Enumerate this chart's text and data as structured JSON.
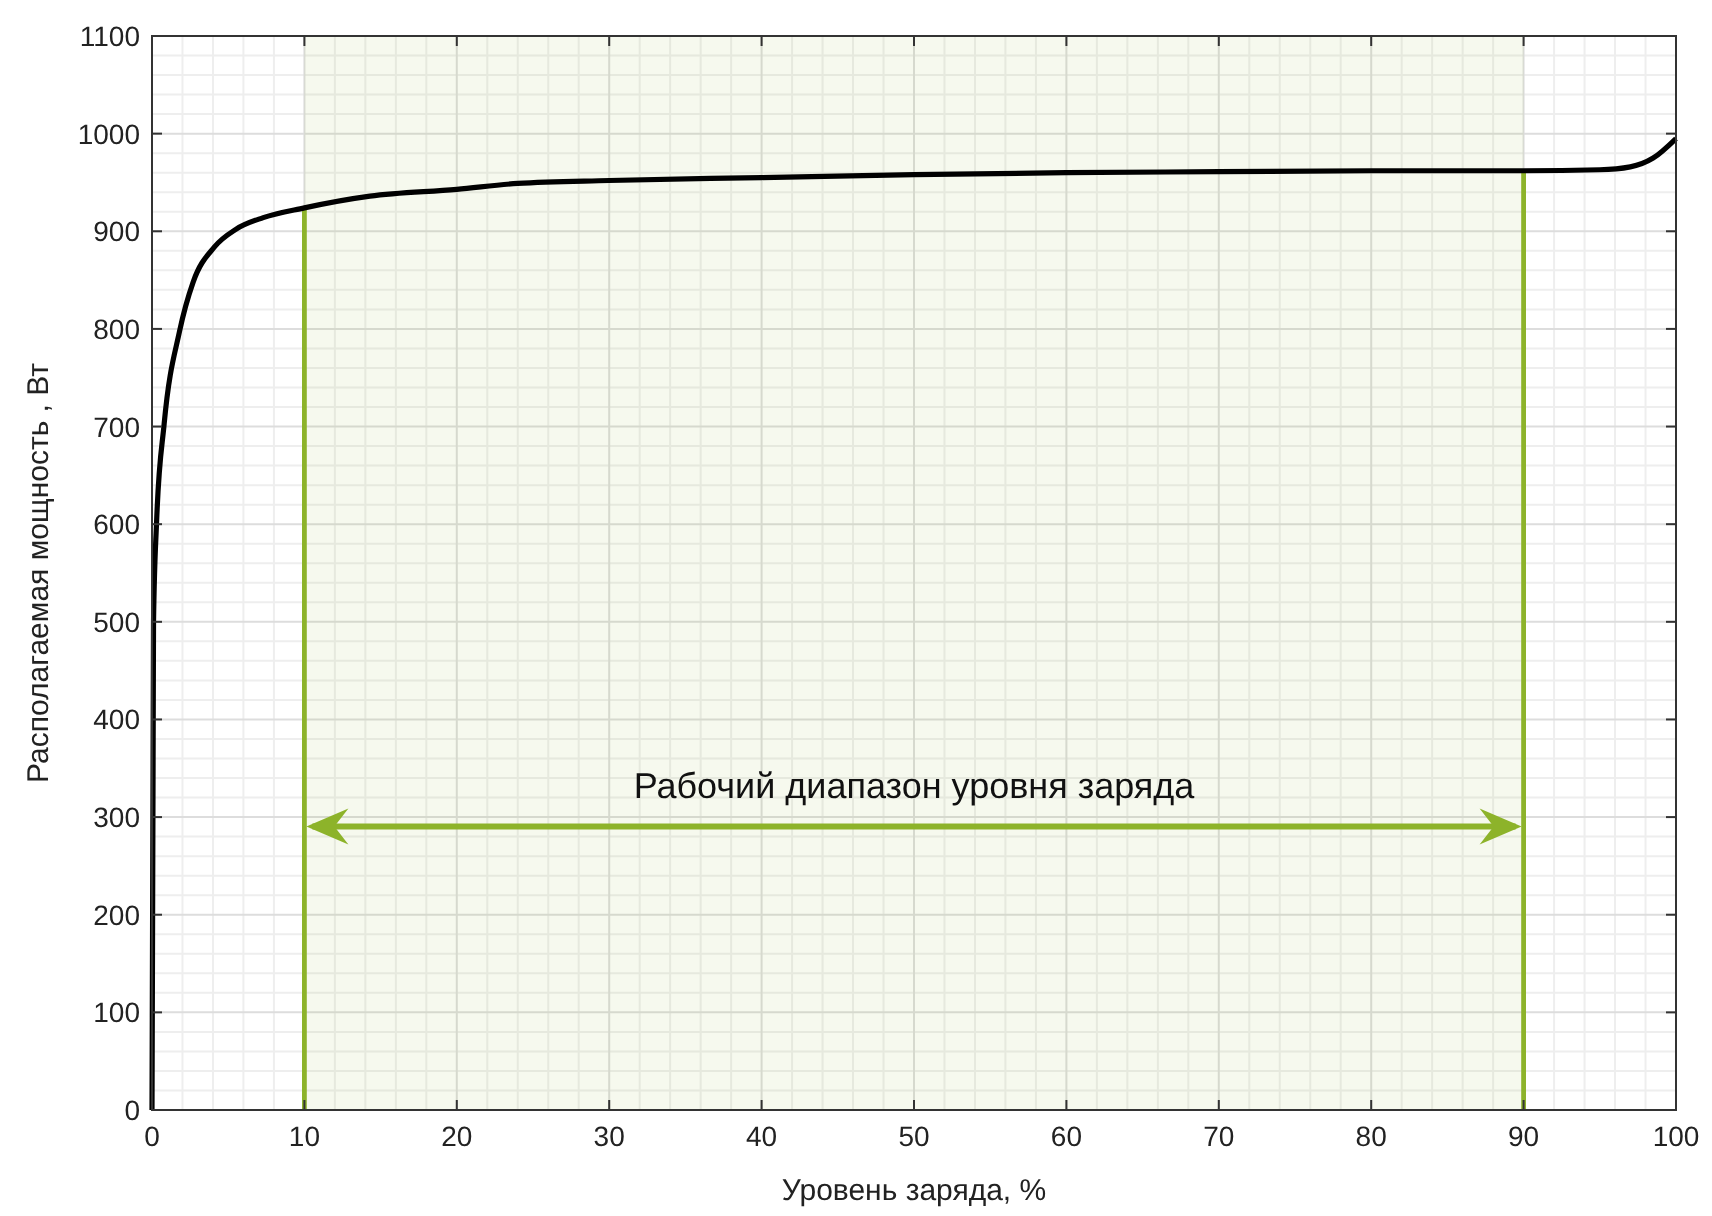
{
  "chart_data": {
    "type": "line",
    "xlabel": "Уровень заряда, %",
    "ylabel": "Располагаемая мощность , Вт",
    "xlim": [
      0,
      100
    ],
    "xticks": [
      0,
      10,
      20,
      30,
      40,
      50,
      60,
      70,
      80,
      90,
      100
    ],
    "ylim": [
      0,
      1100
    ],
    "yticks": [
      0,
      100,
      200,
      300,
      400,
      500,
      600,
      700,
      800,
      900,
      1000,
      1100
    ],
    "grid": true,
    "marker": "none",
    "line_style": "solid",
    "series": [
      {
        "color": "#000000",
        "x": [
          0,
          0.1,
          0.3,
          0.8,
          1.8,
          2.7,
          4.1,
          5.5,
          7.3,
          10,
          14.3,
          20,
          24,
          30,
          40,
          50,
          60,
          70,
          80,
          90,
          95,
          97,
          98.5,
          100
        ],
        "values": [
          0,
          500,
          602,
          703,
          797,
          848,
          884,
          902,
          914,
          924,
          936,
          943,
          949,
          952,
          955,
          958,
          960,
          961,
          962,
          962,
          963,
          966,
          975,
          995
        ]
      }
    ],
    "bands": [
      {
        "axis": "x",
        "from": 10,
        "to": 90,
        "label": "Рабочий диапазон уровня заряда",
        "color": "#8db32a"
      }
    ]
  }
}
